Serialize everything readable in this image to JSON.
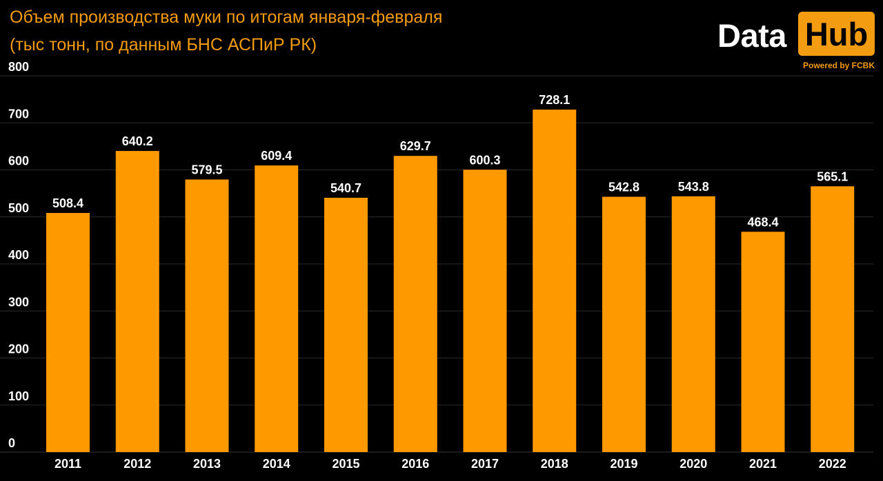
{
  "title_line1": "Объем производства муки по итогам января-февраля",
  "title_line2": "(тыс тонн, по данным БНС АСПиР РК)",
  "logo": {
    "word1": "Data",
    "word2": "Hub",
    "powered": "Powered by FCBK"
  },
  "colors": {
    "background": "#000000",
    "bar": "#ff9900",
    "accent": "#f39c12",
    "text": "#ffffff",
    "grid": "#2a2a2a"
  },
  "chart_data": {
    "type": "bar",
    "title": "Объем производства муки по итогам января-февраля",
    "subtitle": "(тыс тонн, по данным БНС АСПиР РК)",
    "categories": [
      "2011",
      "2012",
      "2013",
      "2014",
      "2015",
      "2016",
      "2017",
      "2018",
      "2019",
      "2020",
      "2021",
      "2022"
    ],
    "values": [
      508.4,
      640.2,
      579.5,
      609.4,
      540.7,
      629.7,
      600.3,
      728.1,
      542.8,
      543.8,
      468.4,
      565.1
    ],
    "value_labels": [
      "508.4",
      "640.2",
      "579.5",
      "609.4",
      "540.7",
      "629.7",
      "600.3",
      "728.1",
      "542.8",
      "543.8",
      "468.4",
      "565.1"
    ],
    "xlabel": "",
    "ylabel": "",
    "ylim": [
      0,
      800
    ],
    "yticks": [
      "0",
      "100",
      "200",
      "300",
      "400",
      "500",
      "600",
      "700",
      "800"
    ],
    "grid": true,
    "legend": "none"
  }
}
